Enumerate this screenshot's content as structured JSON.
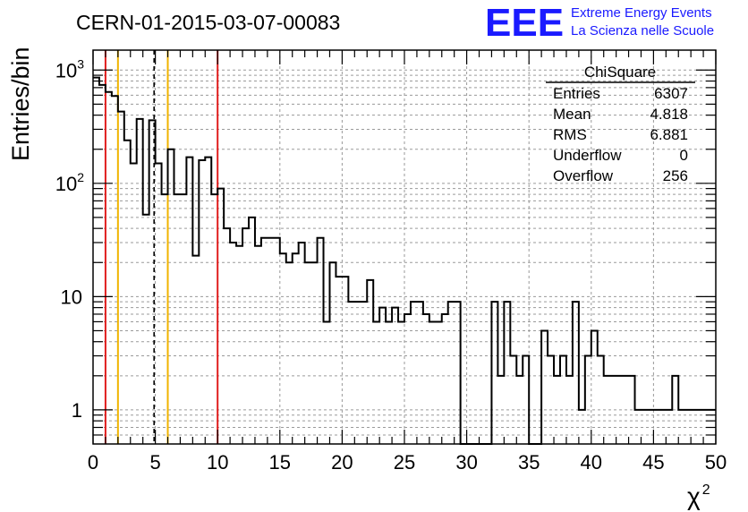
{
  "chart_data": {
    "type": "histogram",
    "title": "CERN-01-2015-03-07-00083",
    "xlabel": "χ",
    "xlabel_superscript": "2",
    "ylabel": "Entries/bin",
    "xlim": [
      0,
      50
    ],
    "ylim": [
      0.5,
      1500
    ],
    "yscale": "log",
    "grid": true,
    "bin_width": 0.5,
    "x_ticks": [
      "0",
      "5",
      "10",
      "15",
      "20",
      "25",
      "30",
      "35",
      "40",
      "45",
      "50"
    ],
    "y_ticks": [
      {
        "value": 1,
        "base": "1",
        "exp": ""
      },
      {
        "value": 10,
        "base": "10",
        "exp": ""
      },
      {
        "value": 100,
        "base": "10",
        "exp": "2"
      },
      {
        "value": 1000,
        "base": "10",
        "exp": "3"
      }
    ],
    "bin_values": [
      860,
      740,
      640,
      590,
      430,
      240,
      150,
      370,
      53,
      360,
      150,
      80,
      200,
      80,
      80,
      170,
      23,
      160,
      170,
      80,
      90,
      40,
      30,
      28,
      40,
      50,
      28,
      33,
      33,
      33,
      24,
      20,
      24,
      30,
      20,
      20,
      33,
      6,
      20,
      15,
      15,
      9,
      9,
      9,
      14,
      6,
      8,
      6,
      8,
      6,
      7,
      9,
      9,
      7,
      6,
      6,
      7,
      9,
      9,
      0,
      0,
      0,
      0,
      0,
      9,
      2,
      9,
      3,
      2,
      3,
      0.1,
      0,
      5,
      3,
      2,
      3,
      2,
      9,
      1,
      3,
      5,
      3,
      2,
      2,
      2,
      2,
      2,
      1,
      1,
      1,
      1,
      1,
      1,
      2,
      1,
      1,
      1,
      1,
      1,
      1
    ],
    "vertical_lines": [
      {
        "x": 1,
        "color": "#e11e1e",
        "style": "solid"
      },
      {
        "x": 2,
        "color": "#f0b400",
        "style": "solid"
      },
      {
        "x": 4.9,
        "color": "#000000",
        "style": "dashed"
      },
      {
        "x": 6,
        "color": "#f0b400",
        "style": "solid"
      },
      {
        "x": 10,
        "color": "#e11e1e",
        "style": "solid"
      }
    ],
    "stats_box": {
      "title": "ChiSquare",
      "rows": [
        {
          "label": "Entries",
          "value": "6307"
        },
        {
          "label": "Mean",
          "value": "4.818"
        },
        {
          "label": "RMS",
          "value": "6.881"
        },
        {
          "label": "Underflow",
          "value": "0"
        },
        {
          "label": "Overflow",
          "value": "256"
        }
      ]
    }
  },
  "logo": {
    "mark": "EEE",
    "line1": "Extreme Energy Events",
    "line2": "La Scienza nelle Scuole"
  }
}
